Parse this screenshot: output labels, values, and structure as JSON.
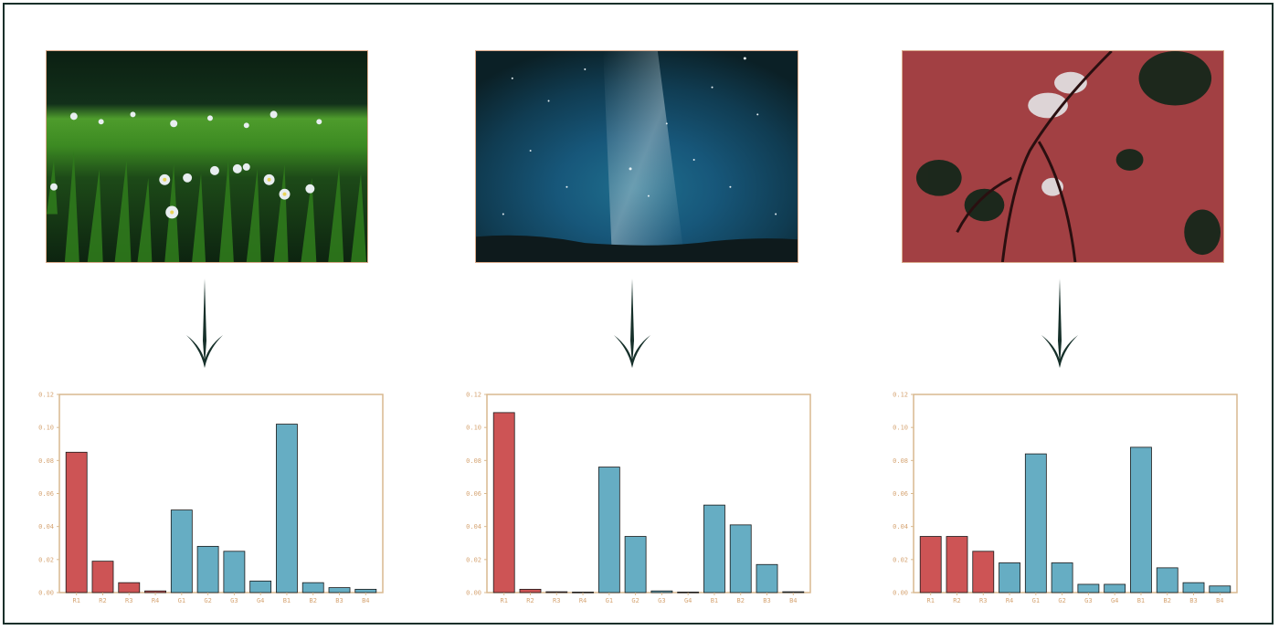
{
  "colors": {
    "red_bar": "#cd5455",
    "blue_bar": "#66adc3",
    "axis": "#d9b98f",
    "tick_text": "#d6a574",
    "arrow": "#16302a",
    "frame": "#16302a"
  },
  "photos": [
    {
      "name": "meadow-daisies-photo",
      "icon": "grass-with-daisies"
    },
    {
      "name": "milky-way-night-sky-photo",
      "icon": "starry-night-sky"
    },
    {
      "name": "red-maple-leaves-photo",
      "icon": "red-autumn-foliage"
    }
  ],
  "chart_data": [
    {
      "type": "bar",
      "categories": [
        "R1",
        "R2",
        "R3",
        "R4",
        "G1",
        "G2",
        "G3",
        "G4",
        "B1",
        "B2",
        "B3",
        "B4"
      ],
      "values": [
        0.085,
        0.019,
        0.006,
        0.001,
        0.05,
        0.028,
        0.025,
        0.007,
        0.102,
        0.006,
        0.003,
        0.002
      ],
      "bar_colors": [
        "red",
        "red",
        "red",
        "red",
        "blue",
        "blue",
        "blue",
        "blue",
        "blue",
        "blue",
        "blue",
        "blue"
      ],
      "yticks": [
        "0.00",
        "0.02",
        "0.04",
        "0.06",
        "0.08",
        "0.10",
        "0.12"
      ],
      "ylim": [
        0,
        0.12
      ],
      "grid": false
    },
    {
      "type": "bar",
      "categories": [
        "R1",
        "R2",
        "R3",
        "R4",
        "G1",
        "G2",
        "G3",
        "G4",
        "B1",
        "B2",
        "B3",
        "B4"
      ],
      "values": [
        0.109,
        0.002,
        0.0005,
        0.0003,
        0.076,
        0.034,
        0.001,
        0.0003,
        0.053,
        0.041,
        0.017,
        0.0005
      ],
      "bar_colors": [
        "red",
        "red",
        "red",
        "red",
        "blue",
        "blue",
        "blue",
        "blue",
        "blue",
        "blue",
        "blue",
        "blue"
      ],
      "yticks": [
        "0.00",
        "0.02",
        "0.04",
        "0.06",
        "0.08",
        "0.10",
        "0.12"
      ],
      "ylim": [
        0,
        0.12
      ],
      "grid": false
    },
    {
      "type": "bar",
      "categories": [
        "R1",
        "R2",
        "R3",
        "R4",
        "G1",
        "G2",
        "G3",
        "G4",
        "B1",
        "B2",
        "B3",
        "B4"
      ],
      "values": [
        0.034,
        0.034,
        0.025,
        0.018,
        0.084,
        0.018,
        0.005,
        0.005,
        0.088,
        0.015,
        0.006,
        0.004
      ],
      "bar_colors": [
        "red",
        "red",
        "red",
        "blue",
        "blue",
        "blue",
        "blue",
        "blue",
        "blue",
        "blue",
        "blue",
        "blue"
      ],
      "yticks": [
        "0.00",
        "0.02",
        "0.04",
        "0.06",
        "0.08",
        "0.10",
        "0.12"
      ],
      "ylim": [
        0,
        0.12
      ],
      "grid": false
    }
  ]
}
